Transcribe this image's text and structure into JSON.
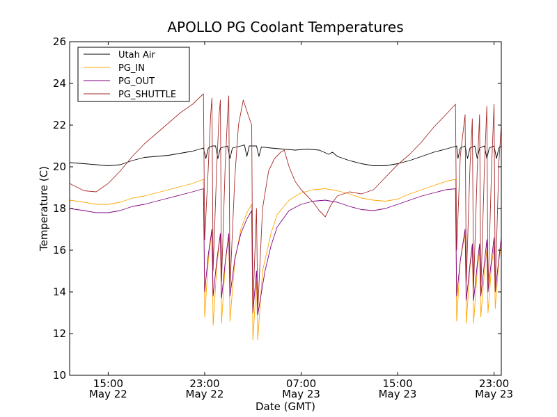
{
  "chart_data": {
    "type": "line",
    "title": "APOLLO PG Coolant Temperatures",
    "xlabel": "Date (GMT)",
    "ylabel": "Temperature (C)",
    "x_unit": "hours since May 22 00:00 GMT",
    "xlim": [
      11.8,
      47.6
    ],
    "ylim": [
      10,
      26
    ],
    "yticks": [
      10,
      12,
      14,
      16,
      18,
      20,
      22,
      24,
      26
    ],
    "xticks": [
      {
        "x": 15,
        "time": "15:00",
        "date": "May 22"
      },
      {
        "x": 23,
        "time": "23:00",
        "date": "May 22"
      },
      {
        "x": 31,
        "time": "07:00",
        "date": "May 23"
      },
      {
        "x": 39,
        "time": "15:00",
        "date": "May 23"
      },
      {
        "x": 47,
        "time": "23:00",
        "date": "May 23"
      }
    ],
    "legend_position": "upper-left",
    "series": [
      {
        "name": "Utah Air",
        "color": "#000000",
        "points": [
          [
            11.8,
            20.2
          ],
          [
            13,
            20.15
          ],
          [
            14,
            20.1
          ],
          [
            15,
            20.05
          ],
          [
            16,
            20.1
          ],
          [
            17,
            20.3
          ],
          [
            18,
            20.45
          ],
          [
            19,
            20.5
          ],
          [
            20,
            20.55
          ],
          [
            21,
            20.65
          ],
          [
            22,
            20.75
          ],
          [
            22.9,
            20.9
          ],
          [
            23.1,
            20.4
          ],
          [
            23.3,
            20.9
          ],
          [
            23.6,
            21.0
          ],
          [
            23.9,
            21.0
          ],
          [
            24.1,
            20.4
          ],
          [
            24.3,
            20.9
          ],
          [
            24.9,
            21.0
          ],
          [
            25.1,
            20.4
          ],
          [
            25.3,
            20.9
          ],
          [
            26,
            21.0
          ],
          [
            26.3,
            21.05
          ],
          [
            26.5,
            20.5
          ],
          [
            26.7,
            21.0
          ],
          [
            27.3,
            21.0
          ],
          [
            27.5,
            20.5
          ],
          [
            27.7,
            20.95
          ],
          [
            28.5,
            20.9
          ],
          [
            29.5,
            20.85
          ],
          [
            30.5,
            20.8
          ],
          [
            31.5,
            20.85
          ],
          [
            32.5,
            20.8
          ],
          [
            33.3,
            20.6
          ],
          [
            33.6,
            20.7
          ],
          [
            34,
            20.5
          ],
          [
            35,
            20.3
          ],
          [
            36,
            20.15
          ],
          [
            37,
            20.05
          ],
          [
            38,
            20.05
          ],
          [
            39,
            20.15
          ],
          [
            40,
            20.3
          ],
          [
            41,
            20.5
          ],
          [
            42,
            20.7
          ],
          [
            43,
            20.85
          ],
          [
            43.9,
            21.0
          ],
          [
            44.0,
            20.4
          ],
          [
            44.2,
            20.9
          ],
          [
            44.6,
            21.0
          ],
          [
            44.8,
            20.4
          ],
          [
            45.0,
            20.9
          ],
          [
            45.4,
            21.0
          ],
          [
            45.6,
            20.4
          ],
          [
            45.8,
            20.9
          ],
          [
            46.2,
            21.0
          ],
          [
            46.4,
            20.4
          ],
          [
            46.6,
            20.9
          ],
          [
            47.0,
            21.0
          ],
          [
            47.2,
            20.4
          ],
          [
            47.4,
            20.9
          ],
          [
            47.6,
            21.0
          ]
        ]
      },
      {
        "name": "PG_IN",
        "color": "#ffa500",
        "points": [
          [
            11.8,
            18.4
          ],
          [
            13,
            18.3
          ],
          [
            14,
            18.2
          ],
          [
            15,
            18.2
          ],
          [
            16,
            18.3
          ],
          [
            17,
            18.5
          ],
          [
            18,
            18.6
          ],
          [
            19,
            18.75
          ],
          [
            20,
            18.9
          ],
          [
            21,
            19.05
          ],
          [
            22,
            19.2
          ],
          [
            22.9,
            19.4
          ],
          [
            23.0,
            12.8
          ],
          [
            23.3,
            15.5
          ],
          [
            23.6,
            17.0
          ],
          [
            23.7,
            12.4
          ],
          [
            24.0,
            15.2
          ],
          [
            24.3,
            16.8
          ],
          [
            24.4,
            12.5
          ],
          [
            24.7,
            15.3
          ],
          [
            25.0,
            16.7
          ],
          [
            25.1,
            12.6
          ],
          [
            25.5,
            15.5
          ],
          [
            26.0,
            17.0
          ],
          [
            26.5,
            17.8
          ],
          [
            26.9,
            18.2
          ],
          [
            27.0,
            11.7
          ],
          [
            27.3,
            14.5
          ],
          [
            27.4,
            11.7
          ],
          [
            27.8,
            15.0
          ],
          [
            28.5,
            16.8
          ],
          [
            29.0,
            17.7
          ],
          [
            30,
            18.4
          ],
          [
            31,
            18.75
          ],
          [
            32,
            18.9
          ],
          [
            33,
            18.95
          ],
          [
            34,
            18.85
          ],
          [
            35,
            18.7
          ],
          [
            36,
            18.5
          ],
          [
            37,
            18.4
          ],
          [
            38,
            18.35
          ],
          [
            39,
            18.45
          ],
          [
            40,
            18.7
          ],
          [
            41,
            18.9
          ],
          [
            42,
            19.1
          ],
          [
            43,
            19.3
          ],
          [
            43.8,
            19.4
          ],
          [
            43.9,
            12.6
          ],
          [
            44.2,
            15.5
          ],
          [
            44.6,
            16.8
          ],
          [
            44.7,
            12.5
          ],
          [
            45.0,
            15.2
          ],
          [
            45.2,
            16.0
          ],
          [
            45.3,
            12.5
          ],
          [
            45.6,
            15.0
          ],
          [
            45.8,
            16.0
          ],
          [
            45.9,
            12.8
          ],
          [
            46.2,
            15.0
          ],
          [
            46.4,
            16.0
          ],
          [
            46.5,
            13.0
          ],
          [
            46.8,
            15.3
          ],
          [
            47.0,
            16.2
          ],
          [
            47.1,
            13.2
          ],
          [
            47.4,
            15.5
          ],
          [
            47.6,
            16.2
          ]
        ]
      },
      {
        "name": "PG_OUT",
        "color": "#800080",
        "points": [
          [
            11.8,
            18.0
          ],
          [
            13,
            17.9
          ],
          [
            14,
            17.8
          ],
          [
            15,
            17.8
          ],
          [
            16,
            17.9
          ],
          [
            17,
            18.1
          ],
          [
            18,
            18.2
          ],
          [
            19,
            18.35
          ],
          [
            20,
            18.5
          ],
          [
            21,
            18.65
          ],
          [
            22,
            18.8
          ],
          [
            22.9,
            18.95
          ],
          [
            23.0,
            14.0
          ],
          [
            23.3,
            15.8
          ],
          [
            23.6,
            17.0
          ],
          [
            23.7,
            13.8
          ],
          [
            24.0,
            15.5
          ],
          [
            24.3,
            16.8
          ],
          [
            24.4,
            13.7
          ],
          [
            24.7,
            15.4
          ],
          [
            25.0,
            16.8
          ],
          [
            25.1,
            13.8
          ],
          [
            25.5,
            15.6
          ],
          [
            26.0,
            16.8
          ],
          [
            26.5,
            17.5
          ],
          [
            26.9,
            17.9
          ],
          [
            27.0,
            13.0
          ],
          [
            27.3,
            15.0
          ],
          [
            27.4,
            12.9
          ],
          [
            28.0,
            15.0
          ],
          [
            28.5,
            16.2
          ],
          [
            29,
            17.1
          ],
          [
            30,
            17.9
          ],
          [
            31,
            18.2
          ],
          [
            32,
            18.35
          ],
          [
            33,
            18.4
          ],
          [
            34,
            18.3
          ],
          [
            35,
            18.1
          ],
          [
            36,
            17.95
          ],
          [
            37,
            17.9
          ],
          [
            38,
            18.0
          ],
          [
            39,
            18.2
          ],
          [
            40,
            18.4
          ],
          [
            41,
            18.6
          ],
          [
            42,
            18.75
          ],
          [
            43,
            18.9
          ],
          [
            43.8,
            18.95
          ],
          [
            43.9,
            13.8
          ],
          [
            44.2,
            15.5
          ],
          [
            44.6,
            17.0
          ],
          [
            44.7,
            13.6
          ],
          [
            45.0,
            15.3
          ],
          [
            45.2,
            16.3
          ],
          [
            45.3,
            13.6
          ],
          [
            45.6,
            15.3
          ],
          [
            45.8,
            16.3
          ],
          [
            45.9,
            13.8
          ],
          [
            46.2,
            15.4
          ],
          [
            46.4,
            16.5
          ],
          [
            46.5,
            14.0
          ],
          [
            46.8,
            15.6
          ],
          [
            47.0,
            16.6
          ],
          [
            47.1,
            14.0
          ],
          [
            47.4,
            15.6
          ],
          [
            47.6,
            16.6
          ]
        ]
      },
      {
        "name": "PG_SHUTTLE",
        "color": "#a52a2a",
        "points": [
          [
            11.8,
            19.2
          ],
          [
            13,
            18.85
          ],
          [
            14,
            18.8
          ],
          [
            15,
            19.2
          ],
          [
            16,
            19.8
          ],
          [
            17,
            20.5
          ],
          [
            18,
            21.1
          ],
          [
            19,
            21.6
          ],
          [
            20,
            22.1
          ],
          [
            21,
            22.6
          ],
          [
            22,
            23.0
          ],
          [
            22.9,
            23.5
          ],
          [
            23.0,
            16.5
          ],
          [
            23.3,
            20.0
          ],
          [
            23.5,
            22.5
          ],
          [
            23.6,
            23.3
          ],
          [
            23.7,
            15.0
          ],
          [
            24.0,
            20.0
          ],
          [
            24.2,
            22.5
          ],
          [
            24.3,
            23.2
          ],
          [
            24.4,
            14.5
          ],
          [
            24.7,
            20.0
          ],
          [
            24.9,
            22.5
          ],
          [
            25.0,
            23.4
          ],
          [
            25.1,
            14.2
          ],
          [
            25.5,
            19.5
          ],
          [
            25.8,
            22.0
          ],
          [
            26.2,
            23.2
          ],
          [
            26.6,
            22.5
          ],
          [
            26.9,
            22.0
          ],
          [
            27.0,
            13.2
          ],
          [
            27.3,
            18.0
          ],
          [
            27.4,
            13.1
          ],
          [
            27.8,
            18.0
          ],
          [
            28.3,
            19.8
          ],
          [
            28.8,
            20.4
          ],
          [
            29.3,
            20.7
          ],
          [
            29.6,
            20.8
          ],
          [
            30,
            20.0
          ],
          [
            30.5,
            19.3
          ],
          [
            31,
            18.9
          ],
          [
            31.5,
            18.6
          ],
          [
            32,
            18.3
          ],
          [
            32.5,
            17.9
          ],
          [
            33,
            17.6
          ],
          [
            33.5,
            18.2
          ],
          [
            34,
            18.6
          ],
          [
            35,
            18.8
          ],
          [
            36,
            18.7
          ],
          [
            37,
            18.9
          ],
          [
            38,
            19.5
          ],
          [
            39,
            20.1
          ],
          [
            40,
            20.6
          ],
          [
            41,
            21.2
          ],
          [
            42,
            21.9
          ],
          [
            43,
            22.5
          ],
          [
            43.8,
            23.0
          ],
          [
            43.9,
            16.0
          ],
          [
            44.2,
            20.5
          ],
          [
            44.6,
            22.5
          ],
          [
            44.7,
            14.5
          ],
          [
            45.0,
            20.0
          ],
          [
            45.2,
            22.3
          ],
          [
            45.3,
            14.2
          ],
          [
            45.6,
            19.8
          ],
          [
            45.8,
            22.5
          ],
          [
            45.9,
            14.0
          ],
          [
            46.2,
            20.0
          ],
          [
            46.4,
            22.9
          ],
          [
            46.5,
            14.0
          ],
          [
            46.8,
            20.0
          ],
          [
            47.0,
            23.0
          ],
          [
            47.1,
            14.1
          ],
          [
            47.4,
            20.2
          ],
          [
            47.6,
            22.0
          ]
        ]
      }
    ]
  }
}
